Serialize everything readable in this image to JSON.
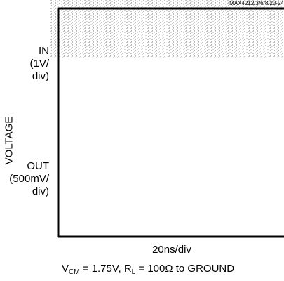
{
  "chart_data": {
    "type": "line",
    "title": "",
    "part_number": "MAX4212/3/6/8/20-24",
    "xlabel": "20ns/div",
    "ylabel": "VOLTAGE",
    "traces": [
      {
        "name": "IN",
        "scale": "(1V/",
        "scale2": "div)"
      },
      {
        "name": "OUT",
        "scale": "(500mV/",
        "scale2": "div)"
      }
    ],
    "caption": {
      "v": "V",
      "cm_sub": "CM",
      "mid": " = 1.75V, R",
      "l_sub": "L",
      "end": " = 100Ω to GROUND"
    },
    "noise_color": "#c9c9c9"
  }
}
